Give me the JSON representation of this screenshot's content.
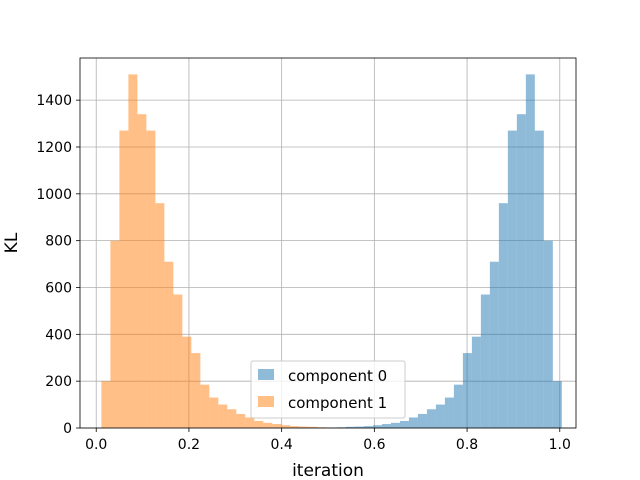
{
  "chart_data": {
    "type": "bar",
    "subtype": "histogram",
    "xlabel": "iteration",
    "ylabel": "KL",
    "xlim": [
      -0.035,
      1.035
    ],
    "ylim": [
      0,
      1580
    ],
    "xticks": [
      0.0,
      0.2,
      0.4,
      0.6,
      0.8,
      1.0
    ],
    "xtick_labels": [
      "0.0",
      "0.2",
      "0.4",
      "0.6",
      "0.8",
      "1.0"
    ],
    "yticks": [
      0,
      200,
      400,
      600,
      800,
      1000,
      1200,
      1400
    ],
    "ytick_labels": [
      "0",
      "200",
      "400",
      "600",
      "800",
      "1000",
      "1200",
      "1400"
    ],
    "grid": true,
    "legend": "lower-center",
    "bin_width": 0.0194,
    "series": [
      {
        "name": "component 0",
        "color": "#1f77b4",
        "opacity": 0.5,
        "bin_start": 0.015,
        "values": [
          0,
          0,
          0,
          0,
          0,
          0,
          0,
          0,
          0,
          0,
          0,
          0,
          0,
          0,
          0,
          0,
          0,
          0,
          0,
          0,
          0,
          0,
          0,
          0,
          1,
          2,
          3,
          5,
          6,
          8,
          12,
          17,
          22,
          30,
          45,
          60,
          80,
          100,
          130,
          185,
          320,
          390,
          570,
          710,
          960,
          1270,
          1340,
          1510,
          1270,
          800,
          200
        ]
      },
      {
        "name": "component 1",
        "color": "#ff7f0e",
        "opacity": 0.5,
        "bin_start": 0.0112,
        "values": [
          200,
          800,
          1270,
          1510,
          1340,
          1270,
          960,
          710,
          570,
          390,
          320,
          185,
          130,
          100,
          80,
          60,
          45,
          30,
          22,
          17,
          12,
          8,
          6,
          5,
          3,
          2,
          1,
          0,
          0,
          0,
          0,
          0,
          0,
          0,
          0,
          0,
          0,
          0,
          0,
          0,
          0,
          0,
          0,
          0,
          0,
          0,
          0,
          0,
          0,
          0,
          0
        ]
      }
    ]
  }
}
